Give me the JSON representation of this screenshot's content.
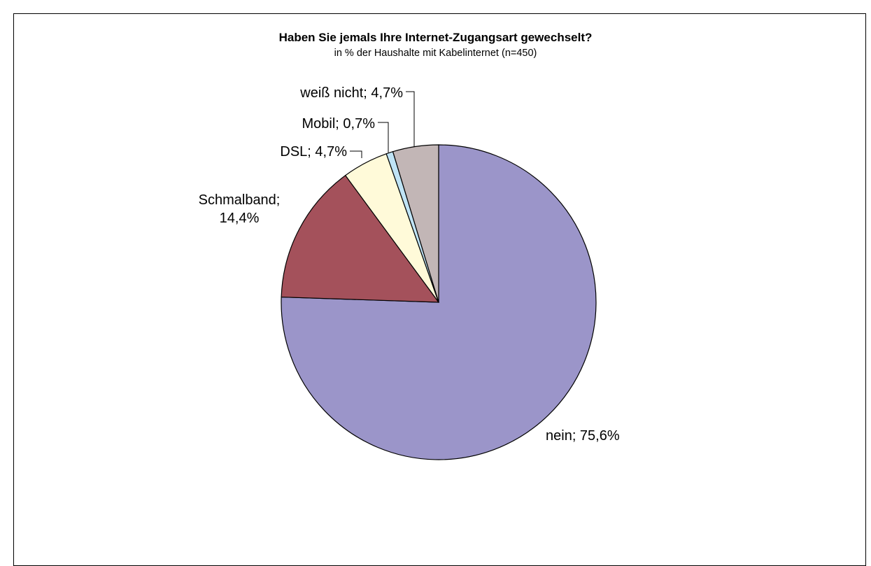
{
  "chart_data": {
    "type": "pie",
    "title": "Haben Sie jemals Ihre Internet-Zugangsart gewechselt?",
    "subtitle": "in % der Haushalte mit Kabelinternet (n=450)",
    "slices": [
      {
        "label": "nein",
        "value": 75.6,
        "label_text": [
          "nein; 75,6%"
        ],
        "color": "#9b95c9"
      },
      {
        "label": "Schmalband",
        "value": 14.4,
        "label_text": [
          "Schmalband;",
          "14,4%"
        ],
        "color": "#a4515b"
      },
      {
        "label": "DSL",
        "value": 4.7,
        "label_text": [
          "DSL; 4,7%"
        ],
        "color": "#fffad9"
      },
      {
        "label": "Mobil",
        "value": 0.7,
        "label_text": [
          "Mobil; 0,7%"
        ],
        "color": "#bfe3f5"
      },
      {
        "label": "weiß nicht",
        "value": 4.7,
        "label_text": [
          "weiß nicht; 4,7%"
        ],
        "color": "#c2b6b6"
      }
    ],
    "start_angle": "12 o'clock",
    "direction": "clockwise",
    "legend": "none"
  }
}
